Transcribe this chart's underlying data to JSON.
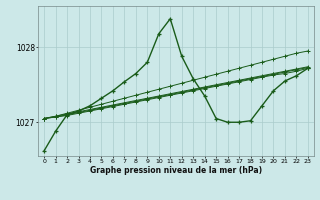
{
  "xlabel": "Graphe pression niveau de la mer (hPa)",
  "bg_color": "#cce8e8",
  "grid_color": "#aacccc",
  "line_color": "#1a5c1a",
  "xlim": [
    -0.5,
    23.5
  ],
  "ylim": [
    1026.55,
    1028.55
  ],
  "yticks": [
    1027,
    1028
  ],
  "xticks": [
    0,
    1,
    2,
    3,
    4,
    5,
    6,
    7,
    8,
    9,
    10,
    11,
    12,
    13,
    14,
    15,
    16,
    17,
    18,
    19,
    20,
    21,
    22,
    23
  ],
  "main": [
    1026.62,
    1026.88,
    1027.1,
    1027.15,
    1027.22,
    1027.32,
    1027.42,
    1027.54,
    1027.65,
    1027.8,
    1028.18,
    1028.38,
    1027.88,
    1027.58,
    1027.35,
    1027.05,
    1027.0,
    1027.0,
    1027.02,
    1027.22,
    1027.42,
    1027.55,
    1027.62,
    1027.72
  ],
  "trend1": [
    1027.05,
    1027.08,
    1027.12,
    1027.16,
    1027.2,
    1027.24,
    1027.28,
    1027.32,
    1027.36,
    1027.4,
    1027.44,
    1027.48,
    1027.52,
    1027.56,
    1027.6,
    1027.64,
    1027.68,
    1027.72,
    1027.76,
    1027.8,
    1027.84,
    1027.88,
    1027.92,
    1027.95
  ],
  "trend2": [
    1027.05,
    1027.08,
    1027.11,
    1027.14,
    1027.17,
    1027.2,
    1027.23,
    1027.26,
    1027.29,
    1027.32,
    1027.35,
    1027.38,
    1027.41,
    1027.44,
    1027.47,
    1027.5,
    1027.53,
    1027.56,
    1027.59,
    1027.62,
    1027.65,
    1027.68,
    1027.71,
    1027.74
  ],
  "trend3": [
    1027.05,
    1027.07,
    1027.1,
    1027.13,
    1027.16,
    1027.19,
    1027.22,
    1027.25,
    1027.28,
    1027.31,
    1027.34,
    1027.37,
    1027.4,
    1027.43,
    1027.46,
    1027.49,
    1027.52,
    1027.55,
    1027.58,
    1027.61,
    1027.64,
    1027.67,
    1027.7,
    1027.73
  ],
  "trend4": [
    1027.05,
    1027.07,
    1027.09,
    1027.12,
    1027.15,
    1027.18,
    1027.21,
    1027.24,
    1027.27,
    1027.3,
    1027.33,
    1027.36,
    1027.39,
    1027.42,
    1027.45,
    1027.48,
    1027.51,
    1027.54,
    1027.57,
    1027.6,
    1027.63,
    1027.65,
    1027.68,
    1027.72
  ]
}
